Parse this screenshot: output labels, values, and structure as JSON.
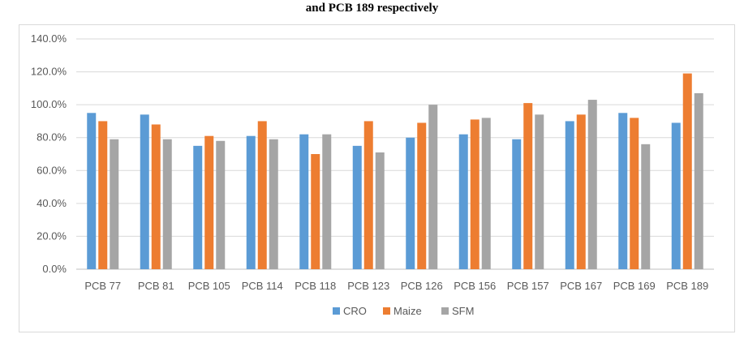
{
  "caption": "and PCB 189 respectively",
  "chart_data": {
    "type": "bar",
    "title": "",
    "xlabel": "",
    "ylabel": "",
    "ylim": [
      0,
      140
    ],
    "yticks": [
      "0.0%",
      "20.0%",
      "40.0%",
      "60.0%",
      "80.0%",
      "100.0%",
      "120.0%",
      "140.0%"
    ],
    "grid": true,
    "legend_position": "bottom",
    "categories": [
      "PCB 77",
      "PCB 81",
      "PCB 105",
      "PCB 114",
      "PCB 118",
      "PCB 123",
      "PCB 126",
      "PCB 156",
      "PCB 157",
      "PCB 167",
      "PCB 169",
      "PCB 189"
    ],
    "series": [
      {
        "name": "CRO",
        "color": "#5b9bd5",
        "values": [
          95,
          94,
          75,
          81,
          82,
          75,
          80,
          82,
          79,
          90,
          95,
          89
        ]
      },
      {
        "name": "Maize",
        "color": "#ed7d31",
        "values": [
          90,
          88,
          81,
          90,
          70,
          90,
          89,
          91,
          101,
          94,
          92,
          119
        ]
      },
      {
        "name": "SFM",
        "color": "#a5a5a5",
        "values": [
          79,
          79,
          78,
          79,
          82,
          71,
          100,
          92,
          94,
          103,
          76,
          107
        ]
      }
    ]
  }
}
